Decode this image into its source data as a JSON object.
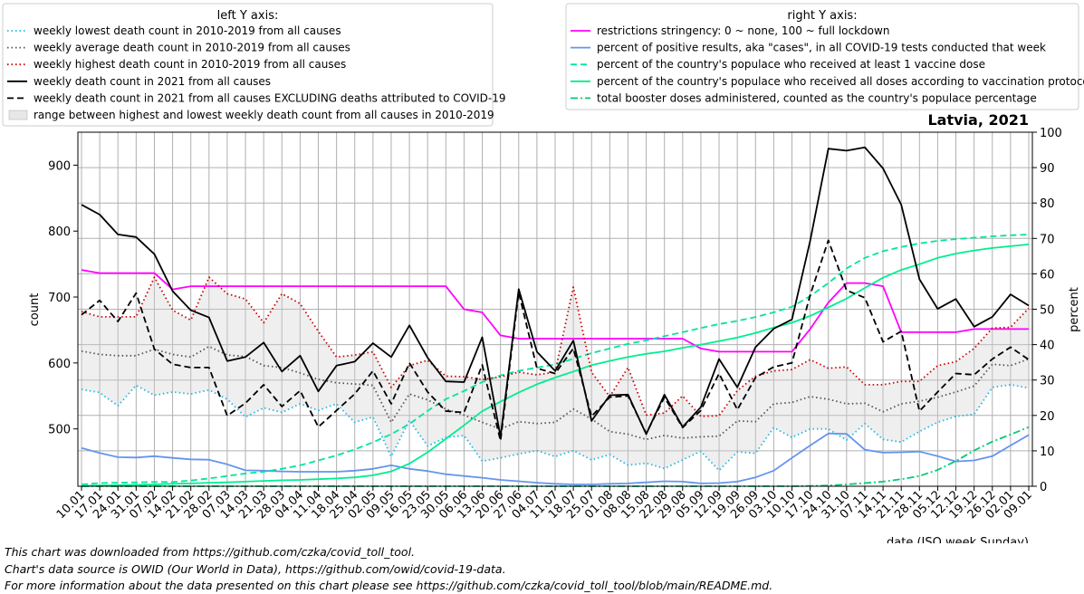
{
  "chart_data": {
    "type": "line",
    "title": "Latvia, 2021",
    "xlabel": "date (ISO week Sunday)",
    "ylabel_left": "count",
    "ylabel_right": "percent",
    "ylim_left": [
      413,
      950
    ],
    "ylim_right": [
      0,
      100
    ],
    "yticks_left": [
      500,
      600,
      700,
      800,
      900
    ],
    "yticks_right": [
      0,
      10,
      20,
      30,
      40,
      50,
      60,
      70,
      80,
      90,
      100
    ],
    "grid": true,
    "x": [
      "10.01",
      "17.01",
      "24.01",
      "31.01",
      "07.02",
      "14.02",
      "21.02",
      "28.02",
      "07.03",
      "14.03",
      "21.03",
      "28.03",
      "04.04",
      "11.04",
      "18.04",
      "25.04",
      "02.05",
      "09.05",
      "16.05",
      "23.05",
      "30.05",
      "06.06",
      "13.06",
      "20.06",
      "27.06",
      "04.07",
      "11.07",
      "18.07",
      "25.07",
      "01.08",
      "08.08",
      "15.08",
      "22.08",
      "29.08",
      "05.09",
      "12.09",
      "19.09",
      "26.09",
      "03.10",
      "10.10",
      "17.10",
      "24.10",
      "31.10",
      "07.11",
      "14.11",
      "21.11",
      "28.11",
      "05.12",
      "12.12",
      "19.12",
      "26.12",
      "02.01",
      "09.01"
    ],
    "legend_left": {
      "title": "left Y axis:",
      "entries": [
        "weekly lowest death count in 2010-2019 from all causes",
        "weekly average death count in 2010-2019 from all causes",
        "weekly highest death count in 2010-2019 from all causes",
        "weekly death count in 2021 from all causes",
        "weekly death count in 2021 from all causes EXCLUDING deaths attributed to COVID-19",
        "range between highest and lowest weekly death count from all causes in 2010-2019"
      ]
    },
    "legend_right": {
      "title": "right Y axis:",
      "entries": [
        "restrictions stringency: 0 ~ none, 100 ~ full lockdown",
        "percent of positive results, aka \"cases\", in all COVID-19 tests conducted that week",
        "percent of the country's populace who received at least 1 vaccine dose",
        "percent of the country's populace who received all doses according to vaccination protocol",
        "total booster doses administered, counted as the country's populace percentage"
      ]
    },
    "series_left": [
      {
        "name": "weekly lowest death count in 2010-2019 from all causes",
        "color": "#1fb8e6",
        "style": "dotted",
        "values": [
          560,
          555,
          535,
          566,
          551,
          556,
          553,
          559,
          545,
          518,
          532,
          525,
          538,
          528,
          538,
          510,
          518,
          458,
          513,
          474,
          487,
          490,
          451,
          456,
          462,
          467,
          458,
          467,
          453,
          461,
          445,
          448,
          440,
          453,
          466,
          437,
          465,
          463,
          502,
          487,
          500,
          500,
          483,
          508,
          484,
          480,
          496,
          510,
          519,
          522,
          563,
          567,
          562
        ]
      },
      {
        "name": "weekly average death count in 2010-2019 from all causes",
        "color": "#555555",
        "style": "dotted",
        "values": [
          618,
          613,
          611,
          611,
          621,
          613,
          609,
          625,
          612,
          610,
          596,
          593,
          585,
          575,
          570,
          568,
          566,
          510,
          553,
          544,
          530,
          521,
          510,
          500,
          511,
          508,
          510,
          530,
          515,
          496,
          492,
          484,
          490,
          486,
          488,
          489,
          512,
          511,
          538,
          540,
          549,
          545,
          538,
          539,
          526,
          538,
          542,
          548,
          556,
          565,
          598,
          596,
          606
        ]
      },
      {
        "name": "weekly highest death count in 2010-2019 from all causes",
        "color": "#cc0000",
        "style": "dotted",
        "values": [
          678,
          670,
          670,
          670,
          730,
          680,
          665,
          730,
          705,
          697,
          661,
          705,
          690,
          648,
          609,
          612,
          617,
          563,
          596,
          604,
          580,
          579,
          575,
          579,
          586,
          582,
          586,
          715,
          586,
          549,
          593,
          521,
          524,
          550,
          519,
          520,
          558,
          580,
          588,
          590,
          605,
          592,
          594,
          567,
          567,
          572,
          572,
          596,
          602,
          622,
          653,
          654,
          683
        ]
      },
      {
        "name": "weekly death count in 2021 from all causes",
        "color": "#000000",
        "style": "solid",
        "values": [
          840,
          825,
          795,
          791,
          765,
          709,
          680,
          669,
          603,
          609,
          631,
          587,
          611,
          557,
          596,
          602,
          630,
          609,
          657,
          608,
          572,
          571,
          639,
          488,
          712,
          617,
          588,
          634,
          512,
          551,
          552,
          492,
          552,
          503,
          533,
          606,
          563,
          624,
          652,
          666,
          785,
          925,
          922,
          927,
          895,
          840,
          727,
          682,
          697,
          655,
          670,
          704,
          687
        ]
      },
      {
        "name": "weekly death count in 2021 from all causes EXCLUDING deaths attributed to COVID-19",
        "color": "#000000",
        "style": "dashed",
        "values": [
          673,
          695,
          663,
          706,
          621,
          598,
          593,
          593,
          520,
          539,
          567,
          534,
          558,
          503,
          528,
          553,
          588,
          538,
          600,
          556,
          527,
          525,
          597,
          482,
          707,
          592,
          584,
          622,
          519,
          548,
          550,
          493,
          548,
          502,
          528,
          584,
          529,
          578,
          594,
          600,
          703,
          786,
          710,
          699,
          632,
          648,
          527,
          556,
          584,
          582,
          606,
          624,
          605
        ]
      }
    ],
    "series_right": [
      {
        "name": "restrictions stringency: 0 ~ none, 100 ~ full lockdown",
        "color": "#ff00ff",
        "style": "solid",
        "values": [
          61.1,
          60.2,
          60.2,
          60.2,
          60.2,
          55.6,
          56.5,
          56.5,
          56.5,
          56.5,
          56.5,
          56.5,
          56.5,
          56.5,
          56.5,
          56.5,
          56.5,
          56.5,
          56.5,
          56.5,
          56.5,
          50.0,
          49.1,
          42.6,
          41.7,
          41.7,
          41.7,
          41.7,
          41.7,
          41.7,
          41.7,
          41.7,
          41.7,
          41.7,
          38.9,
          38.0,
          38.0,
          38.0,
          38.0,
          38.0,
          44.4,
          51.9,
          57.4,
          57.4,
          56.5,
          43.5,
          43.5,
          43.5,
          43.5,
          44.4,
          44.4,
          44.4,
          44.4
        ]
      },
      {
        "name": "percent of positive results, aka \"cases\", in all COVID-19 tests conducted that week",
        "color": "#6495ed",
        "style": "solid",
        "values": [
          10.8,
          9.4,
          8.2,
          8.1,
          8.5,
          8.0,
          7.6,
          7.5,
          6.2,
          4.5,
          4.4,
          4.2,
          4.1,
          4.1,
          4.1,
          4.4,
          4.9,
          5.9,
          4.9,
          4.3,
          3.4,
          2.9,
          2.4,
          1.8,
          1.4,
          1.0,
          0.7,
          0.5,
          0.5,
          0.7,
          0.8,
          1.1,
          1.4,
          1.3,
          0.8,
          0.9,
          1.3,
          2.5,
          4.4,
          8.0,
          11.5,
          14.9,
          14.8,
          10.3,
          9.5,
          9.6,
          9.8,
          8.5,
          7.0,
          7.3,
          8.5,
          11.5,
          14.5
        ]
      },
      {
        "name": "percent of the country's populace who received at least 1 vaccine dose",
        "color": "#00e5a0",
        "style": "dashed",
        "values": [
          0.5,
          0.9,
          1.0,
          1.1,
          1.2,
          1.2,
          1.6,
          2.2,
          2.9,
          3.6,
          4.1,
          4.9,
          5.9,
          7.3,
          8.7,
          10.4,
          12.4,
          14.7,
          17.6,
          21.3,
          24.6,
          26.9,
          29.4,
          31.3,
          32.6,
          33.5,
          34.4,
          36.0,
          37.6,
          38.9,
          40.2,
          41.2,
          42.4,
          43.5,
          44.7,
          45.8,
          46.7,
          47.8,
          49.1,
          50.7,
          53.7,
          57.4,
          61.5,
          64.5,
          66.4,
          67.6,
          68.6,
          69.3,
          69.8,
          70.2,
          70.6,
          70.9,
          71.1
        ]
      },
      {
        "name": "percent of the country's populace who received all doses according to vaccination protocol",
        "color": "#00ee90",
        "style": "solid",
        "values": [
          0.1,
          0.2,
          0.3,
          0.4,
          0.5,
          0.7,
          0.8,
          1.0,
          1.1,
          1.3,
          1.5,
          1.7,
          1.8,
          2.0,
          2.2,
          2.5,
          3.1,
          4.2,
          6.4,
          9.6,
          13.4,
          17.2,
          21.2,
          23.9,
          26.5,
          28.8,
          30.7,
          32.4,
          34.2,
          35.4,
          36.5,
          37.4,
          38.1,
          39.1,
          40.0,
          41.0,
          42.0,
          43.3,
          44.8,
          46.2,
          48.1,
          50.5,
          53.0,
          56.0,
          58.9,
          61.1,
          62.7,
          64.5,
          65.7,
          66.6,
          67.3,
          67.8,
          68.3
        ]
      },
      {
        "name": "total booster doses administered, counted as the country's populace percentage",
        "color": "#00cc77",
        "style": "dashdot",
        "values": [
          0,
          0,
          0,
          0,
          0,
          0,
          0,
          0,
          0,
          0,
          0,
          0,
          0,
          0,
          0,
          0,
          0,
          0,
          0,
          0,
          0,
          0,
          0,
          0,
          0,
          0,
          0,
          0,
          0,
          0,
          0,
          0,
          0,
          0,
          0,
          0,
          0,
          0,
          0,
          0,
          0.1,
          0.2,
          0.5,
          0.9,
          1.3,
          2.0,
          2.9,
          4.6,
          7.1,
          10.1,
          12.6,
          14.6,
          16.7
        ]
      }
    ]
  },
  "footer": {
    "line1": "This chart was downloaded from https://github.com/czka/covid_toll_tool.",
    "line2": "Chart's data source is OWID (Our World in Data), https://github.com/owid/covid-19-data.",
    "line3": "For more information about the data presented on this chart please see https://github.com/czka/covid_toll_tool/blob/main/README.md."
  }
}
